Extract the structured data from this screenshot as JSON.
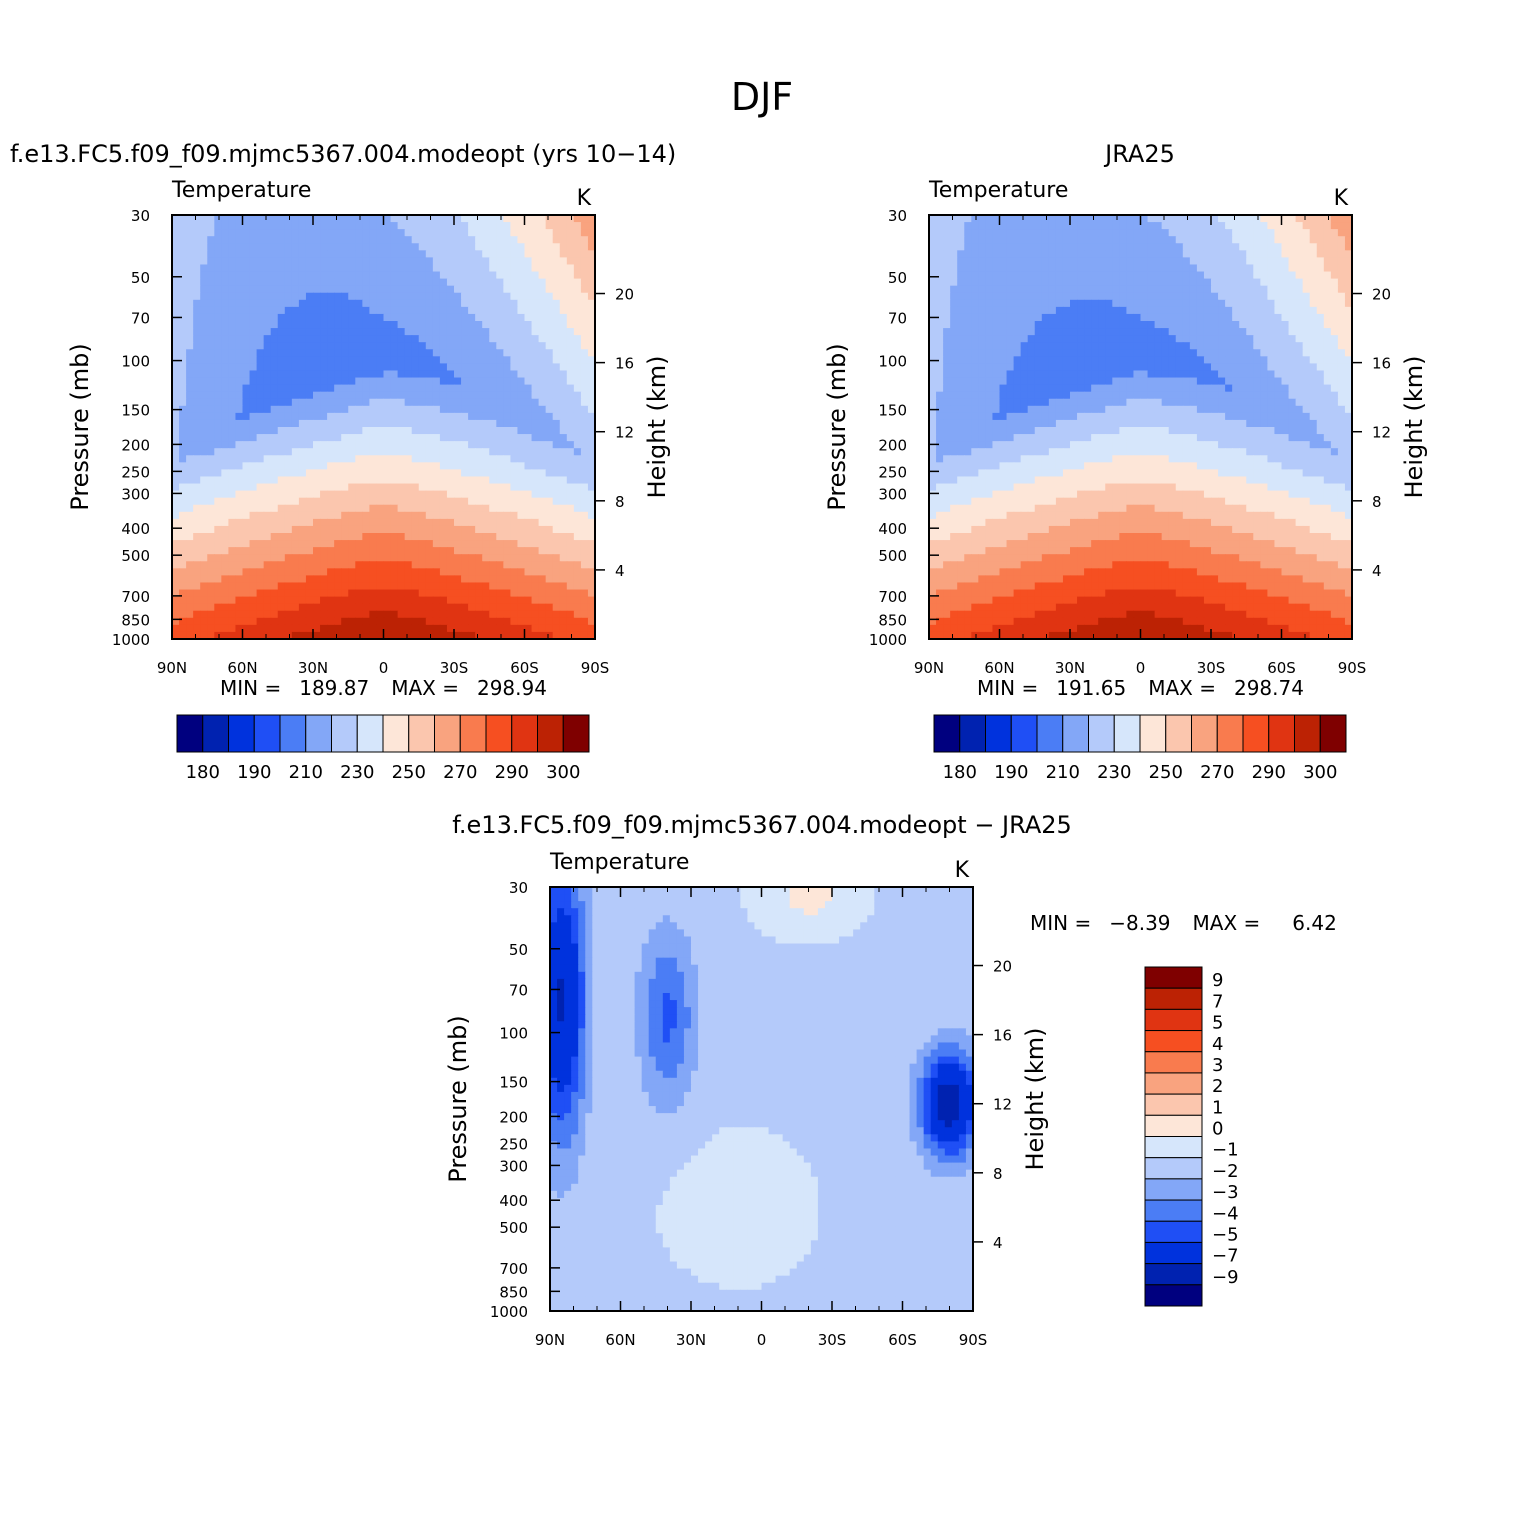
{
  "super_title": "DJF",
  "chart_data": [
    {
      "type": "heatmap",
      "title": "f.e13.FC5.f09_f09.mjmc5367.004.modeopt (yrs 10−14)",
      "left_string": "Temperature",
      "right_string": "K",
      "xlabel": "",
      "ylabel": "Pressure (mb)",
      "ylabel_right": "Height (km)",
      "x_ticks": [
        "90N",
        "60N",
        "30N",
        "0",
        "30S",
        "60S",
        "90S"
      ],
      "y_ticks": [
        "30",
        "50",
        "70",
        "100",
        "150",
        "200",
        "250",
        "300",
        "400",
        "500",
        "700",
        "850",
        "1000"
      ],
      "y_right_ticks": [
        "4",
        "8",
        "12",
        "16",
        "20"
      ],
      "ylim": [
        1000,
        30
      ],
      "log_y": true,
      "stats": {
        "min_label": "MIN =",
        "min": "189.87",
        "max_label": "MAX =",
        "max": "298.94"
      },
      "field": "model",
      "colorbar": {
        "orientation": "horizontal",
        "labels": [
          "180",
          "190",
          "210",
          "230",
          "250",
          "270",
          "290",
          "300"
        ],
        "colors": [
          "#00007f",
          "#0022b0",
          "#0032dd",
          "#1f4ff5",
          "#4b7df5",
          "#83a7f7",
          "#b4cafa",
          "#d6e6fb",
          "#fde6d8",
          "#fbc6ae",
          "#f9a37f",
          "#f97b4e",
          "#f64f21",
          "#e03412",
          "#bc2204",
          "#7f0000"
        ]
      }
    },
    {
      "type": "heatmap",
      "title": "JRA25",
      "left_string": "Temperature",
      "right_string": "K",
      "xlabel": "",
      "ylabel": "Pressure (mb)",
      "ylabel_right": "Height (km)",
      "x_ticks": [
        "90N",
        "60N",
        "30N",
        "0",
        "30S",
        "60S",
        "90S"
      ],
      "y_ticks": [
        "30",
        "50",
        "70",
        "100",
        "150",
        "200",
        "250",
        "300",
        "400",
        "500",
        "700",
        "850",
        "1000"
      ],
      "y_right_ticks": [
        "4",
        "8",
        "12",
        "16",
        "20"
      ],
      "ylim": [
        1000,
        30
      ],
      "log_y": true,
      "stats": {
        "min_label": "MIN =",
        "min": "191.65",
        "max_label": "MAX =",
        "max": "298.74"
      },
      "field": "obs",
      "colorbar": {
        "orientation": "horizontal",
        "labels": [
          "180",
          "190",
          "210",
          "230",
          "250",
          "270",
          "290",
          "300"
        ],
        "colors": [
          "#00007f",
          "#0022b0",
          "#0032dd",
          "#1f4ff5",
          "#4b7df5",
          "#83a7f7",
          "#b4cafa",
          "#d6e6fb",
          "#fde6d8",
          "#fbc6ae",
          "#f9a37f",
          "#f97b4e",
          "#f64f21",
          "#e03412",
          "#bc2204",
          "#7f0000"
        ]
      }
    },
    {
      "type": "heatmap",
      "title": "f.e13.FC5.f09_f09.mjmc5367.004.modeopt − JRA25",
      "left_string": "Temperature",
      "right_string": "K",
      "xlabel": "",
      "ylabel": "Pressure (mb)",
      "ylabel_right": "Height (km)",
      "x_ticks": [
        "90N",
        "60N",
        "30N",
        "0",
        "30S",
        "60S",
        "90S"
      ],
      "y_ticks": [
        "30",
        "50",
        "70",
        "100",
        "150",
        "200",
        "250",
        "300",
        "400",
        "500",
        "700",
        "850",
        "1000"
      ],
      "y_right_ticks": [
        "4",
        "8",
        "12",
        "16",
        "20"
      ],
      "ylim": [
        1000,
        30
      ],
      "log_y": true,
      "stats": {
        "min_label": "MIN =",
        "min": "−8.39",
        "max_label": "MAX =",
        "max": "6.42"
      },
      "field": "diff",
      "colorbar": {
        "orientation": "vertical",
        "labels": [
          "9",
          "7",
          "5",
          "4",
          "3",
          "2",
          "1",
          "0",
          "−1",
          "−2",
          "−3",
          "−4",
          "−5",
          "−7",
          "−9"
        ],
        "colors": [
          "#7f0000",
          "#bc2204",
          "#e03412",
          "#f64f21",
          "#f97b4e",
          "#f9a37f",
          "#fbc6ae",
          "#fde6d8",
          "#d6e6fb",
          "#b4cafa",
          "#83a7f7",
          "#4b7df5",
          "#1f4ff5",
          "#0032dd",
          "#0022b0",
          "#00007f"
        ]
      }
    }
  ]
}
